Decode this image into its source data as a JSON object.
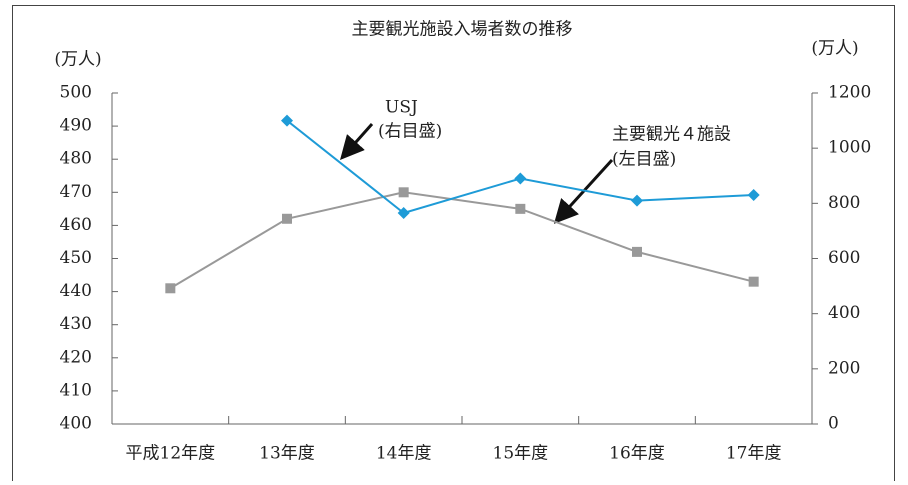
{
  "chart_data": {
    "type": "line",
    "title": "主要観光施設入場者数の推移",
    "y_label": "(万人)",
    "y2_label": "(万人)",
    "categories": [
      "平成12年度",
      "13年度",
      "14年度",
      "15年度",
      "16年度",
      "17年度"
    ],
    "series": [
      {
        "name": "主要観光４施設",
        "color": "#999999",
        "marker": "square",
        "values": [
          441,
          462,
          470,
          465,
          452,
          443
        ]
      },
      {
        "name": "USJ",
        "color": "#1e9bd7",
        "marker": "diamond",
        "axis": "y2",
        "values": [
          null,
          1100,
          765,
          890,
          810,
          830
        ]
      }
    ],
    "annotations": [
      "(左目盛)",
      "(右目盛)"
    ],
    "ylim": [
      400,
      500
    ],
    "yticks": [
      400,
      410,
      420,
      430,
      440,
      450,
      460,
      470,
      480,
      490,
      500
    ],
    "y2lim": [
      0,
      1200
    ],
    "y2ticks": [
      0,
      200,
      400,
      600,
      800,
      1000,
      1200
    ]
  }
}
